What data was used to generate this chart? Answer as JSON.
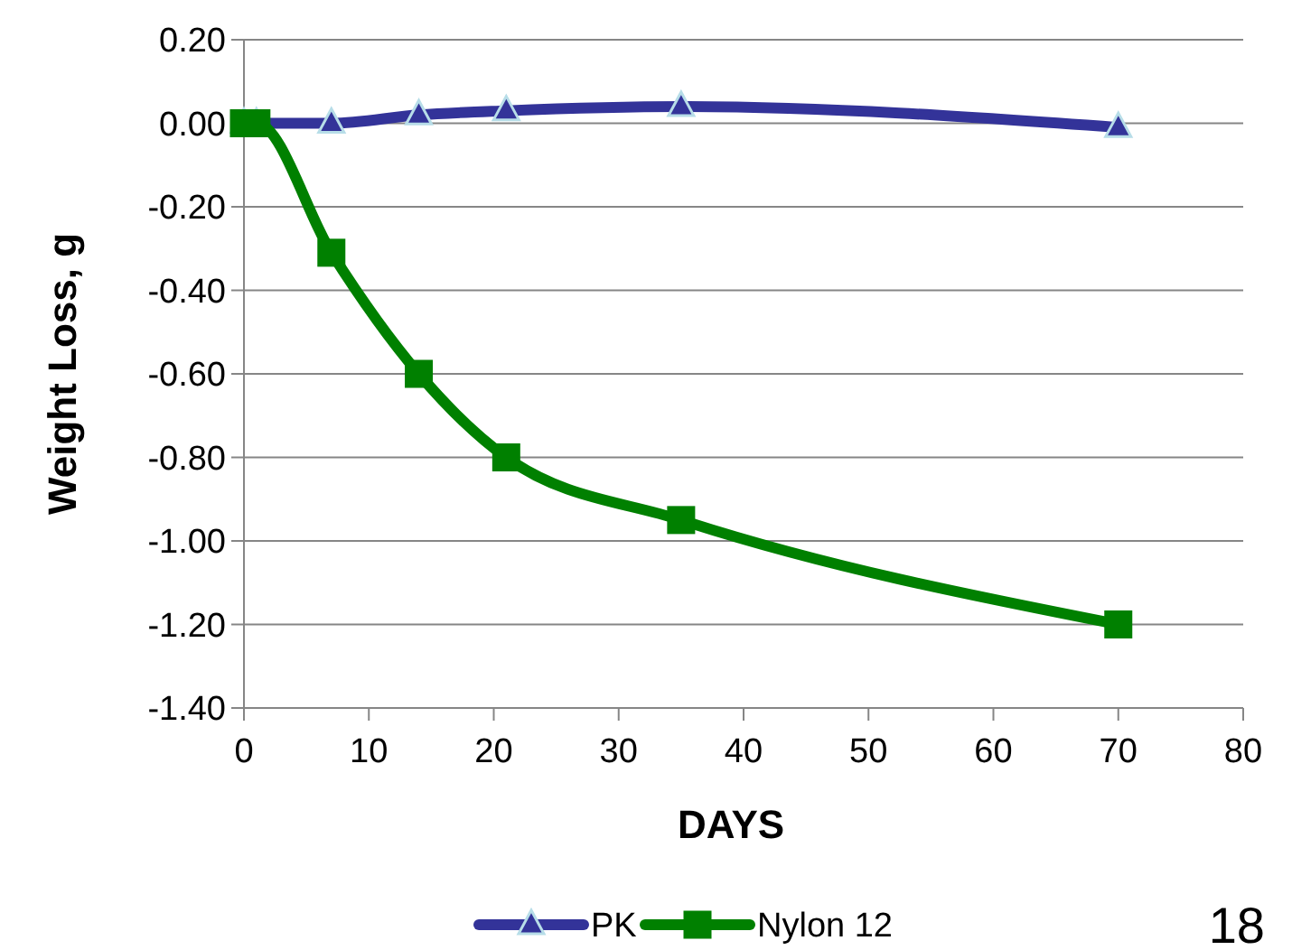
{
  "chart_data": {
    "type": "line",
    "xlabel": "DAYS",
    "ylabel": "Weight Loss, g",
    "xlim": [
      0,
      80
    ],
    "xticks": [
      0,
      10,
      20,
      30,
      40,
      50,
      60,
      70,
      80
    ],
    "ylim": [
      -1.4,
      0.2
    ],
    "yticks": [
      {
        "value": 0.2,
        "label": "0.20"
      },
      {
        "value": 0,
        "label": "0.00"
      },
      {
        "value": -0.2,
        "label": "-0.20"
      },
      {
        "value": -0.4,
        "label": "-0.40"
      },
      {
        "value": -0.6,
        "label": "-0.60"
      },
      {
        "value": -0.8,
        "label": "-0.80"
      },
      {
        "value": -1,
        "label": "-1.00"
      },
      {
        "value": -1.2,
        "label": "-1.20"
      },
      {
        "value": -1.4,
        "label": "-1.40"
      }
    ],
    "grid": "y",
    "legend": "bottom",
    "annotations": [
      "18"
    ],
    "series": [
      {
        "name": "PK",
        "color": "#333399",
        "marker": "triangle",
        "x": [
          0,
          1,
          7,
          14,
          21,
          35,
          70
        ],
        "values": [
          0,
          0,
          0,
          0.02,
          0.03,
          0.04,
          -0.01
        ]
      },
      {
        "name": "Nylon 12",
        "color": "#008000",
        "marker": "square",
        "x": [
          0,
          1,
          7,
          14,
          21,
          35,
          70
        ],
        "values": [
          0,
          0,
          -0.31,
          -0.6,
          -0.8,
          -0.95,
          -1.2
        ]
      }
    ]
  }
}
